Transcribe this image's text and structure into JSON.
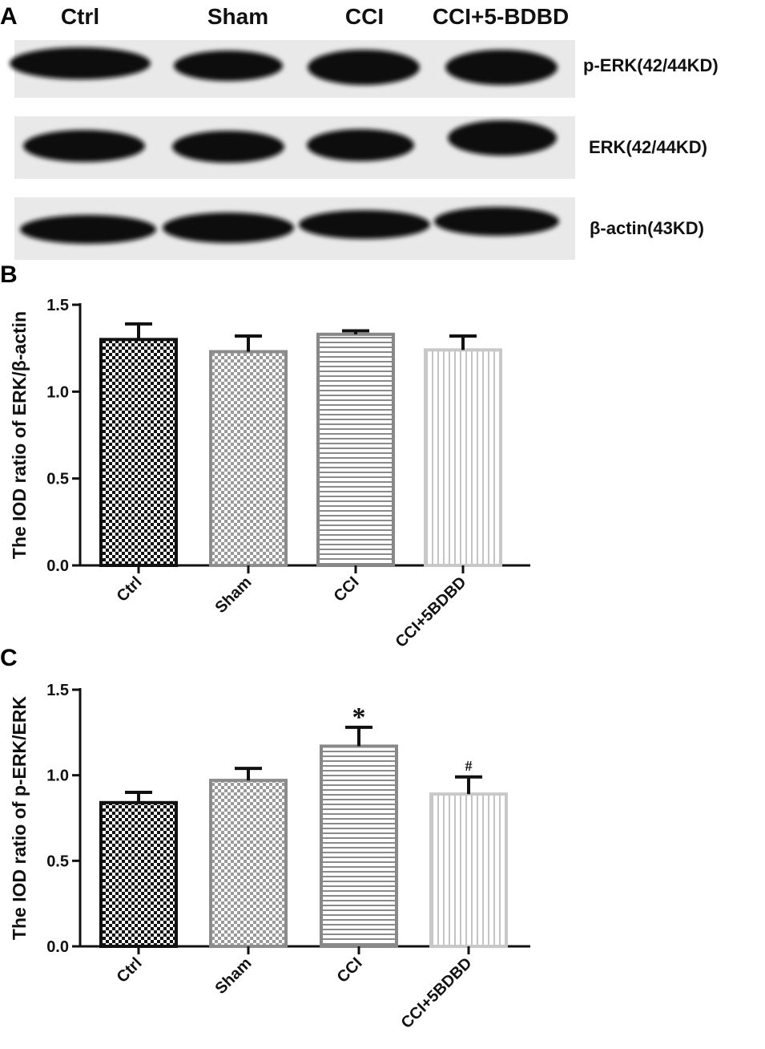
{
  "panel_labels": {
    "a": "A",
    "b": "B",
    "c": "C"
  },
  "blot": {
    "lanes": [
      "Ctrl",
      "Sham",
      "CCI",
      "CCI+5-BDBD"
    ],
    "rows": [
      "p-ERK(42/44KD)",
      "ERK(42/44KD)",
      "β-actin(43KD)"
    ]
  },
  "colors": {
    "ctrl": "#111111",
    "sham": "#8c8c8c",
    "cci": "#888888",
    "cci_5bdbd": "#c8c8c8",
    "blot_bg": "#e9e9e9",
    "band": "#0b0b0b"
  },
  "chart_data": [
    {
      "type": "bar",
      "ylabel": "The IOD ratio of ERK/β-actin",
      "categories": [
        "Ctrl",
        "Sham",
        "CCI",
        "CCI+5BDBD"
      ],
      "values": [
        1.3,
        1.23,
        1.33,
        1.24
      ],
      "errors": [
        0.09,
        0.09,
        0.02,
        0.08
      ],
      "ylim": [
        0,
        1.5
      ],
      "yticks": [
        "0.0",
        "0.5",
        "1.0",
        "1.5"
      ],
      "annotations": [
        "",
        "",
        "",
        ""
      ]
    },
    {
      "type": "bar",
      "ylabel": "The IOD ratio of p-ERK/ERK",
      "categories": [
        "Ctrl",
        "Sham",
        "CCI",
        "CCI+5BDBD"
      ],
      "values": [
        0.84,
        0.97,
        1.17,
        0.89
      ],
      "errors": [
        0.06,
        0.07,
        0.11,
        0.1
      ],
      "ylim": [
        0,
        1.5
      ],
      "yticks": [
        "0.0",
        "0.5",
        "1.0",
        "1.5"
      ],
      "annotations": [
        "",
        "",
        "*",
        "#"
      ]
    }
  ]
}
